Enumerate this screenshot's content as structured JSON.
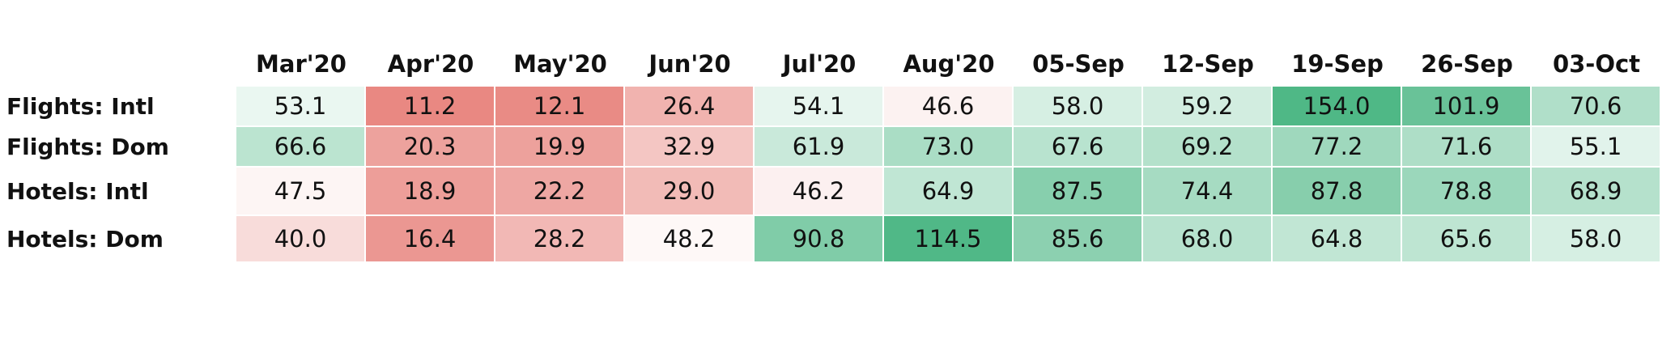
{
  "chart_data": {
    "type": "heatmap",
    "title": "",
    "columns": [
      "Mar'20",
      "Apr'20",
      "May'20",
      "Jun'20",
      "Jul'20",
      "Aug'20",
      "05-Sep",
      "12-Sep",
      "19-Sep",
      "26-Sep",
      "03-Oct"
    ],
    "rows": [
      {
        "label": "Flights: Intl",
        "values": [
          "53.1",
          "11.2",
          "12.1",
          "26.4",
          "54.1",
          "46.6",
          "58.0",
          "59.2",
          "154.0",
          "101.9",
          "70.6"
        ]
      },
      {
        "label": "Flights: Dom",
        "values": [
          "66.6",
          "20.3",
          "19.9",
          "32.9",
          "61.9",
          "73.0",
          "67.6",
          "69.2",
          "77.2",
          "71.6",
          "55.1"
        ]
      },
      {
        "label": "Hotels: Intl",
        "values": [
          "47.5",
          "18.9",
          "22.2",
          "29.0",
          "46.2",
          "64.9",
          "87.5",
          "74.4",
          "87.8",
          "78.8",
          "68.9"
        ]
      },
      {
        "label": "Hotels: Dom",
        "values": [
          "40.0",
          "16.4",
          "28.2",
          "48.2",
          "90.8",
          "114.5",
          "85.6",
          "68.0",
          "64.8",
          "65.6",
          "58.0"
        ]
      }
    ],
    "color_scale": {
      "low_color": "#e8857f",
      "mid_color": "#ffffff",
      "high_color": "#4fb886",
      "midpoint": 50,
      "low_value": 10,
      "high_value": 115
    }
  }
}
